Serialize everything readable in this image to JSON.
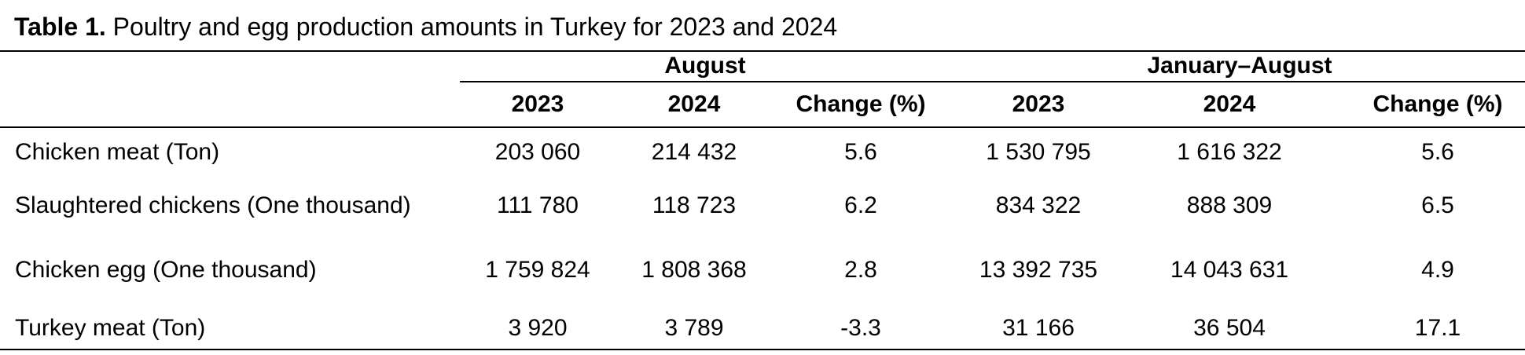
{
  "header": {
    "label": "Table 1.",
    "title": "Poultry and egg production amounts in Turkey for 2023 and 2024"
  },
  "table": {
    "groups": [
      "August",
      "January–August"
    ],
    "columns": [
      "2023",
      "2024",
      "Change (%)",
      "2023",
      "2024",
      "Change (%)"
    ],
    "rows": [
      [
        "Chicken meat (Ton)",
        "203 060",
        "214 432",
        "5.6",
        "1 530 795",
        "1 616 322",
        "5.6"
      ],
      [
        "Slaughtered chickens (One thousand)",
        "111 780",
        "118 723",
        "6.2",
        "834 322",
        "888 309",
        "6.5"
      ],
      [
        "Chicken egg (One thousand)",
        "1 759 824",
        "1 808 368",
        "2.8",
        "13 392 735",
        "14 043 631",
        "4.9"
      ],
      [
        "Turkey meat (Ton)",
        "3 920",
        "3 789",
        "-3.3",
        "31 166",
        "36 504",
        "17.1"
      ]
    ]
  }
}
